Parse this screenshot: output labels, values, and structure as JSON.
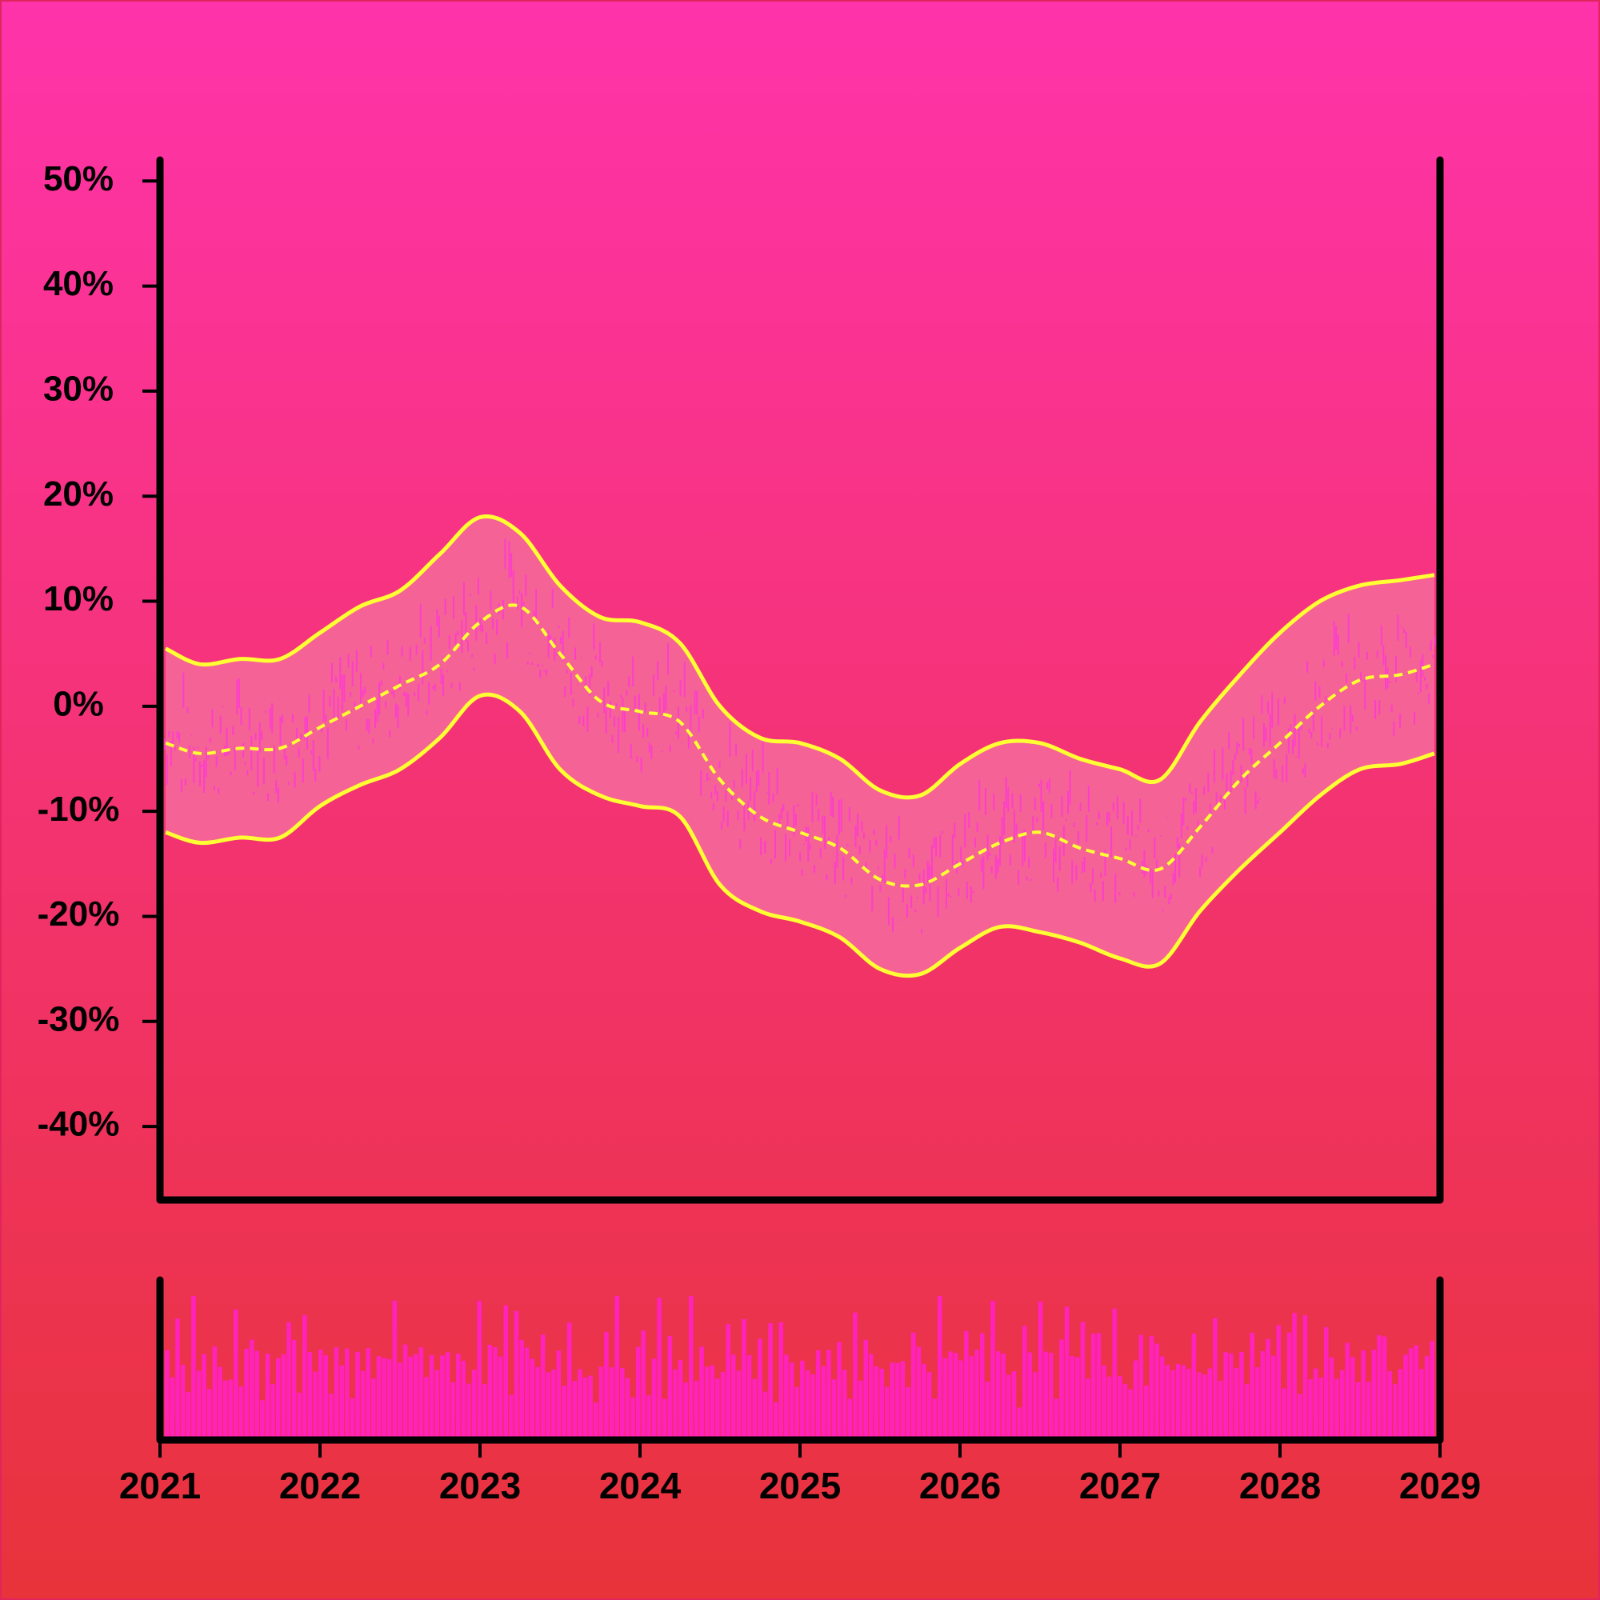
{
  "chart_data": {
    "type": "line",
    "title": "",
    "xlabel": "",
    "ylabel": "",
    "x_tick_labels": [
      "2021",
      "2022",
      "2023",
      "2024",
      "2025",
      "2026",
      "2027",
      "2028",
      "2029"
    ],
    "y_tick_labels": [
      "50%",
      "40%",
      "30%",
      "20%",
      "10%",
      "0%",
      "-10%",
      "-20%",
      "-30%",
      "-40%"
    ],
    "xlim": [
      2021,
      2029
    ],
    "ylim": [
      -47,
      52
    ],
    "grid": false,
    "legend": "none",
    "x": [
      2021.0,
      2021.25,
      2021.5,
      2021.75,
      2022.0,
      2022.25,
      2022.5,
      2022.75,
      2023.0,
      2023.25,
      2023.5,
      2023.75,
      2024.0,
      2024.25,
      2024.5,
      2024.75,
      2025.0,
      2025.25,
      2025.5,
      2025.75,
      2026.0,
      2026.25,
      2026.5,
      2026.75,
      2027.0,
      2027.25,
      2027.5,
      2027.75,
      2028.0,
      2028.25,
      2028.5,
      2028.75,
      2029.0
    ],
    "series": [
      {
        "role": "mid",
        "values": [
          -3.5,
          -4.5,
          -4,
          -4,
          -2,
          0,
          2,
          4,
          8,
          9.5,
          5,
          0.5,
          -0.5,
          -1.5,
          -7,
          -10.5,
          -12,
          -13.5,
          -16.5,
          -17,
          -15,
          -13,
          -12,
          -13.5,
          -14.5,
          -15.5,
          -11.5,
          -7,
          -3.5,
          0,
          2.5,
          3,
          4
        ]
      },
      {
        "role": "upper",
        "values": [
          5.5,
          4,
          4.5,
          4.5,
          7,
          9.5,
          11,
          14.5,
          18,
          16.5,
          11.5,
          8.5,
          8,
          6,
          0,
          -3,
          -3.5,
          -5,
          -8,
          -8.5,
          -5.5,
          -3.5,
          -3.5,
          -5,
          -6,
          -7,
          -1.5,
          3,
          7,
          10,
          11.5,
          12,
          12.5
        ]
      },
      {
        "role": "lower",
        "values": [
          -12,
          -13,
          -12.5,
          -12.5,
          -9.5,
          -7.5,
          -6,
          -3,
          1,
          -0.5,
          -6,
          -8.5,
          -9.5,
          -10.5,
          -17,
          -19.5,
          -20.5,
          -22,
          -25,
          -25.5,
          -23,
          -21,
          -21.5,
          -22.5,
          -24,
          -24.5,
          -19.5,
          -15.5,
          -12,
          -8.5,
          -6,
          -5.5,
          -4.5
        ]
      }
    ],
    "bars": [
      22,
      14,
      30,
      25,
      19,
      33,
      21,
      28,
      17,
      26,
      31,
      20,
      24,
      35,
      18,
      27,
      29,
      22,
      16,
      34,
      23,
      26,
      20,
      31,
      25,
      18,
      28,
      24,
      21,
      30,
      27,
      19,
      33,
      22,
      26,
      17,
      29,
      25,
      31,
      20,
      24,
      28,
      18,
      32,
      23,
      27,
      21,
      30,
      26,
      19,
      35,
      22,
      25,
      29,
      17,
      31,
      24,
      20,
      28,
      33,
      23,
      27,
      21,
      26,
      30,
      18,
      34,
      25,
      22,
      29,
      24,
      31,
      19,
      27,
      26,
      23,
      32,
      20,
      28,
      25
    ],
    "colors": {
      "background_top": "#ff33aa",
      "background_bottom": "#e8333a",
      "band_fill": "#f56295",
      "band_line": "#ffff33",
      "jitter": "#ff33dd",
      "volume": "#ff22bb",
      "axes": "#000000"
    }
  }
}
